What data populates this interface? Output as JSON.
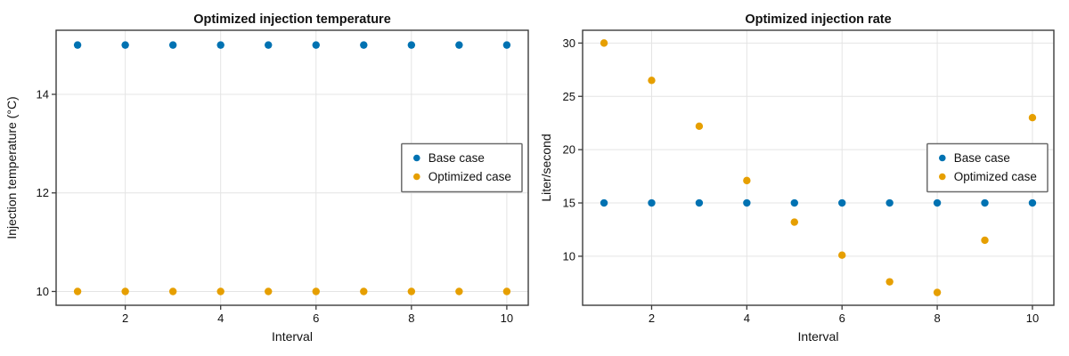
{
  "figure": {
    "background": "#ffffff"
  },
  "colors": {
    "base_case": "#0072B2",
    "optimized_case": "#E69F00",
    "axis_spine": "#3c3c3c",
    "grid_line": "#e4e4e4",
    "tick_text": "#111111",
    "legend_border": "#6b6b6b",
    "legend_background": "#ffffff"
  },
  "chart_data": [
    {
      "type": "scatter",
      "title": "Optimized injection temperature",
      "xlabel": "Interval",
      "ylabel": "Injection temperature (°C)",
      "x": [
        1,
        2,
        3,
        4,
        5,
        6,
        7,
        8,
        9,
        10
      ],
      "series": [
        {
          "name": "Base case",
          "color": "base_case",
          "values": [
            15,
            15,
            15,
            15,
            15,
            15,
            15,
            15,
            15,
            15
          ]
        },
        {
          "name": "Optimized case",
          "color": "optimized_case",
          "values": [
            10,
            10,
            10,
            10,
            10,
            10,
            10,
            10,
            10,
            10
          ]
        }
      ],
      "xlim": [
        0.55,
        10.45
      ],
      "ylim": [
        9.72,
        15.3
      ],
      "xticks": [
        2,
        4,
        6,
        8,
        10
      ],
      "yticks": [
        10,
        12,
        14
      ],
      "grid": true,
      "legend": {
        "position": "center-right",
        "entries": [
          "Base case",
          "Optimized case"
        ]
      }
    },
    {
      "type": "scatter",
      "title": "Optimized injection rate",
      "xlabel": "Interval",
      "ylabel": "Liter/second",
      "x": [
        1,
        2,
        3,
        4,
        5,
        6,
        7,
        8,
        9,
        10
      ],
      "series": [
        {
          "name": "Base case",
          "color": "base_case",
          "values": [
            15,
            15,
            15,
            15,
            15,
            15,
            15,
            15,
            15,
            15
          ]
        },
        {
          "name": "Optimized case",
          "color": "optimized_case",
          "values": [
            30,
            26.5,
            22.2,
            17.1,
            13.2,
            10.1,
            7.6,
            6.6,
            11.5,
            23
          ]
        }
      ],
      "xlim": [
        0.55,
        10.45
      ],
      "ylim": [
        5.4,
        31.2
      ],
      "xticks": [
        2,
        4,
        6,
        8,
        10
      ],
      "yticks": [
        10,
        15,
        20,
        25,
        30
      ],
      "grid": true,
      "legend": {
        "position": "center-right",
        "entries": [
          "Base case",
          "Optimized case"
        ]
      }
    }
  ]
}
